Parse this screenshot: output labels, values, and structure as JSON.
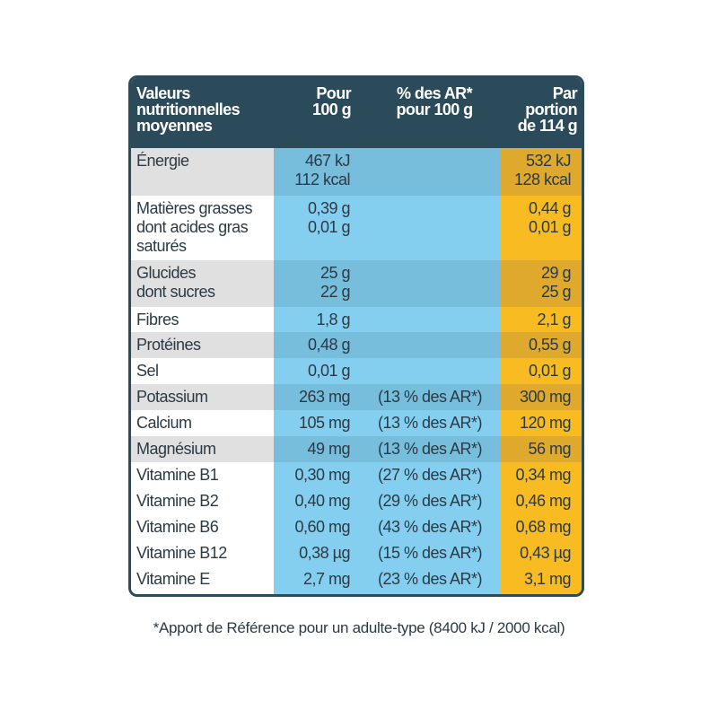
{
  "table": {
    "header": [
      [
        "Valeurs",
        "nutritionnelles",
        "moyennes"
      ],
      [
        "Pour",
        "100 g"
      ],
      [
        "% des AR*",
        "pour 100 g"
      ],
      [
        "Par",
        "portion",
        "de 114 g"
      ]
    ],
    "rows": [
      {
        "label": [
          "Énergie"
        ],
        "per_100g": [
          "467 kJ",
          "112 kcal"
        ],
        "portion": [
          "532 kJ",
          "128 kcal"
        ]
      },
      {
        "label": [
          "Matières grasses",
          "dont acides gras",
          "saturés"
        ],
        "per_100g": [
          "0,39 g",
          "0,01 g"
        ],
        "portion": [
          "0,44 g",
          "0,01 g"
        ]
      },
      {
        "label": [
          "Glucides",
          "dont sucres"
        ],
        "per_100g": [
          "25 g",
          "22 g"
        ],
        "portion": [
          "29 g",
          "25 g"
        ]
      },
      {
        "label": [
          "Fibres"
        ],
        "per_100g": [
          "1,8 g"
        ],
        "portion": [
          "2,1 g"
        ]
      },
      {
        "label": [
          "Protéines"
        ],
        "per_100g": [
          "0,48 g"
        ],
        "portion": [
          "0,55 g"
        ]
      },
      {
        "label": [
          "Sel"
        ],
        "per_100g": [
          "0,01 g"
        ],
        "portion": [
          "0,01 g"
        ]
      },
      {
        "label": [
          "Potassium"
        ],
        "per_100g": [
          "263 mg"
        ],
        "percent_ar": "(13 % des AR*)",
        "portion": [
          "300 mg"
        ]
      },
      {
        "label": [
          "Calcium"
        ],
        "per_100g": [
          "105 mg"
        ],
        "percent_ar": "(13 % des AR*)",
        "portion": [
          "120 mg"
        ]
      },
      {
        "label": [
          "Magnésium"
        ],
        "per_100g": [
          "49 mg"
        ],
        "percent_ar": "(13 % des AR*)",
        "portion": [
          "56 mg"
        ]
      },
      {
        "label": [
          "Vitamine B1"
        ],
        "per_100g": [
          "0,30 mg"
        ],
        "percent_ar": "(27 % des AR*)",
        "portion": [
          "0,34 mg"
        ]
      },
      {
        "label": [
          "Vitamine B2"
        ],
        "per_100g": [
          "0,40 mg"
        ],
        "percent_ar": "(29 % des AR*)",
        "portion": [
          "0,46 mg"
        ]
      },
      {
        "label": [
          "Vitamine B6"
        ],
        "per_100g": [
          "0,60 mg"
        ],
        "percent_ar": "(43 % des AR*)",
        "portion": [
          "0,68 mg"
        ]
      },
      {
        "label": [
          "Vitamine B12"
        ],
        "per_100g": [
          "0,38 µg"
        ],
        "percent_ar": "(15 % des AR*)",
        "portion": [
          "0,43 µg"
        ]
      },
      {
        "label": [
          "Vitamine E"
        ],
        "per_100g": [
          "2,7 mg"
        ],
        "percent_ar": "(23 % des AR*)",
        "portion": [
          "3,1 mg"
        ]
      }
    ]
  },
  "footnote": "*Apport de Référence pour un adulte-type (8400 kJ / 2000 kcal)"
}
